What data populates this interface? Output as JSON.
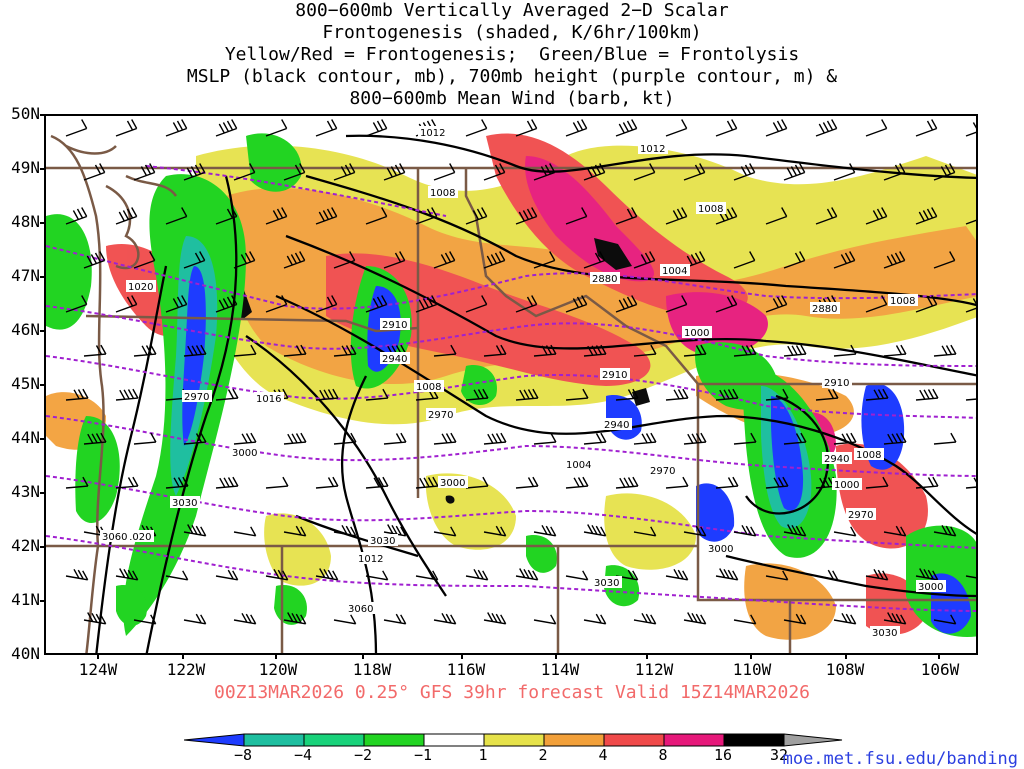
{
  "header": {
    "title_lines": [
      "800−600mb Vertically Averaged 2−D Scalar",
      "Frontogenesis (shaded, K/6hr/100km)",
      "Yellow/Red = Frontogenesis;  Green/Blue = Frontolysis",
      "MSLP (black contour, mb), 700mb height (purple contour, m) &",
      "800−600mb Mean Wind (barb, kt)"
    ]
  },
  "map": {
    "lat_labels": [
      "50N",
      "49N",
      "48N",
      "47N",
      "46N",
      "45N",
      "44N",
      "43N",
      "42N",
      "41N",
      "40N"
    ],
    "lon_labels": [
      "124W",
      "122W",
      "120W",
      "118W",
      "116W",
      "114W",
      "112W",
      "110W",
      "108W",
      "106W"
    ],
    "mslp_labels": [
      "1012",
      "1012",
      "1008",
      "1008",
      "1004",
      "1020",
      "1016",
      "1008",
      "1000",
      "1008",
      "1004",
      "1000",
      "1008",
      "1012",
      "1020"
    ],
    "height_labels": [
      "2880",
      "2880",
      "2910",
      "2940",
      "2910",
      "2970",
      "2970",
      "2940",
      "3000",
      "3000",
      "2970",
      "3030",
      "3060",
      "3030",
      "3060",
      "2910",
      "2940",
      "2970",
      "3000",
      "3000",
      "3030",
      "3030"
    ],
    "colors": {
      "mslp_contour": "#000000",
      "height_contour": "#a020d0",
      "border": "#7a5a46",
      "barb": "#000000"
    }
  },
  "footer": {
    "run_info": "00Z13MAR2026 0.25° GFS 39hr forecast Valid 15Z14MAR2026",
    "url": "moe.met.fsu.edu/banding"
  },
  "colorbar": {
    "labels": [
      "−8",
      "−4",
      "−2",
      "−1",
      "1",
      "2",
      "4",
      "8",
      "16",
      "32"
    ],
    "colors": [
      "#1e3cff",
      "#1fbfa0",
      "#18d27a",
      "#22d422",
      "#ffffff",
      "#e6e24a",
      "#f2a03a",
      "#f04a4a",
      "#e6187a",
      "#000000",
      "#a0a0a0"
    ]
  }
}
